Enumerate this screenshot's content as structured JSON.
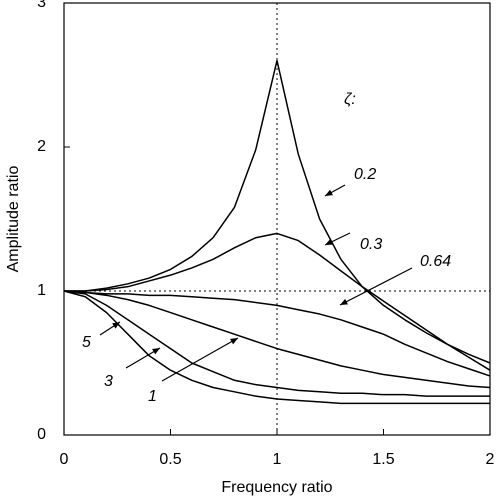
{
  "chart_data": {
    "type": "line",
    "x_label": "Frequency ratio",
    "y_label": "Amplitude ratio",
    "annotation": "ζ:",
    "x": [
      0,
      0.1,
      0.2,
      0.3,
      0.4,
      0.5,
      0.6,
      0.7,
      0.8,
      0.9,
      1.0,
      1.1,
      1.2,
      1.3,
      1.4,
      1.5,
      1.6,
      1.7,
      1.8,
      1.9,
      2.0
    ],
    "series": [
      {
        "name": "0.2",
        "color": "#000000",
        "values": [
          1,
          1,
          1.02,
          1.05,
          1.09,
          1.15,
          1.24,
          1.37,
          1.58,
          1.98,
          2.6,
          1.95,
          1.5,
          1.22,
          1.03,
          0.9,
          0.8,
          0.71,
          0.63,
          0.56,
          0.5
        ]
      },
      {
        "name": "0.3",
        "color": "#000000",
        "values": [
          1,
          1,
          1.01,
          1.03,
          1.07,
          1.11,
          1.16,
          1.22,
          1.3,
          1.37,
          1.4,
          1.35,
          1.25,
          1.14,
          1.03,
          0.93,
          0.83,
          0.73,
          0.63,
          0.54,
          0.45
        ]
      },
      {
        "name": "0.64",
        "color": "#000000",
        "values": [
          1,
          0.99,
          0.98,
          0.98,
          0.97,
          0.97,
          0.96,
          0.95,
          0.94,
          0.92,
          0.9,
          0.87,
          0.84,
          0.8,
          0.75,
          0.7,
          0.63,
          0.57,
          0.51,
          0.46,
          0.41
        ]
      },
      {
        "name": "1",
        "color": "#000000",
        "values": [
          1,
          0.99,
          0.97,
          0.94,
          0.9,
          0.85,
          0.8,
          0.75,
          0.7,
          0.65,
          0.6,
          0.56,
          0.52,
          0.48,
          0.45,
          0.42,
          0.4,
          0.38,
          0.36,
          0.34,
          0.33
        ]
      },
      {
        "name": "3",
        "color": "#000000",
        "values": [
          1,
          0.98,
          0.9,
          0.8,
          0.7,
          0.6,
          0.5,
          0.44,
          0.38,
          0.35,
          0.33,
          0.31,
          0.3,
          0.29,
          0.29,
          0.28,
          0.28,
          0.27,
          0.27,
          0.27,
          0.27
        ]
      },
      {
        "name": "5",
        "color": "#000000",
        "values": [
          1,
          0.96,
          0.85,
          0.7,
          0.55,
          0.45,
          0.38,
          0.33,
          0.3,
          0.27,
          0.25,
          0.24,
          0.23,
          0.22,
          0.22,
          0.22,
          0.22,
          0.22,
          0.22,
          0.22,
          0.22
        ]
      }
    ],
    "xlim": [
      0,
      2
    ],
    "ylim": [
      0,
      3
    ],
    "xticks": [
      0,
      0.5,
      1,
      1.5,
      2
    ],
    "yticks": [
      0,
      1,
      2,
      3
    ],
    "vlines": [
      1
    ],
    "hlines": [
      1
    ]
  }
}
